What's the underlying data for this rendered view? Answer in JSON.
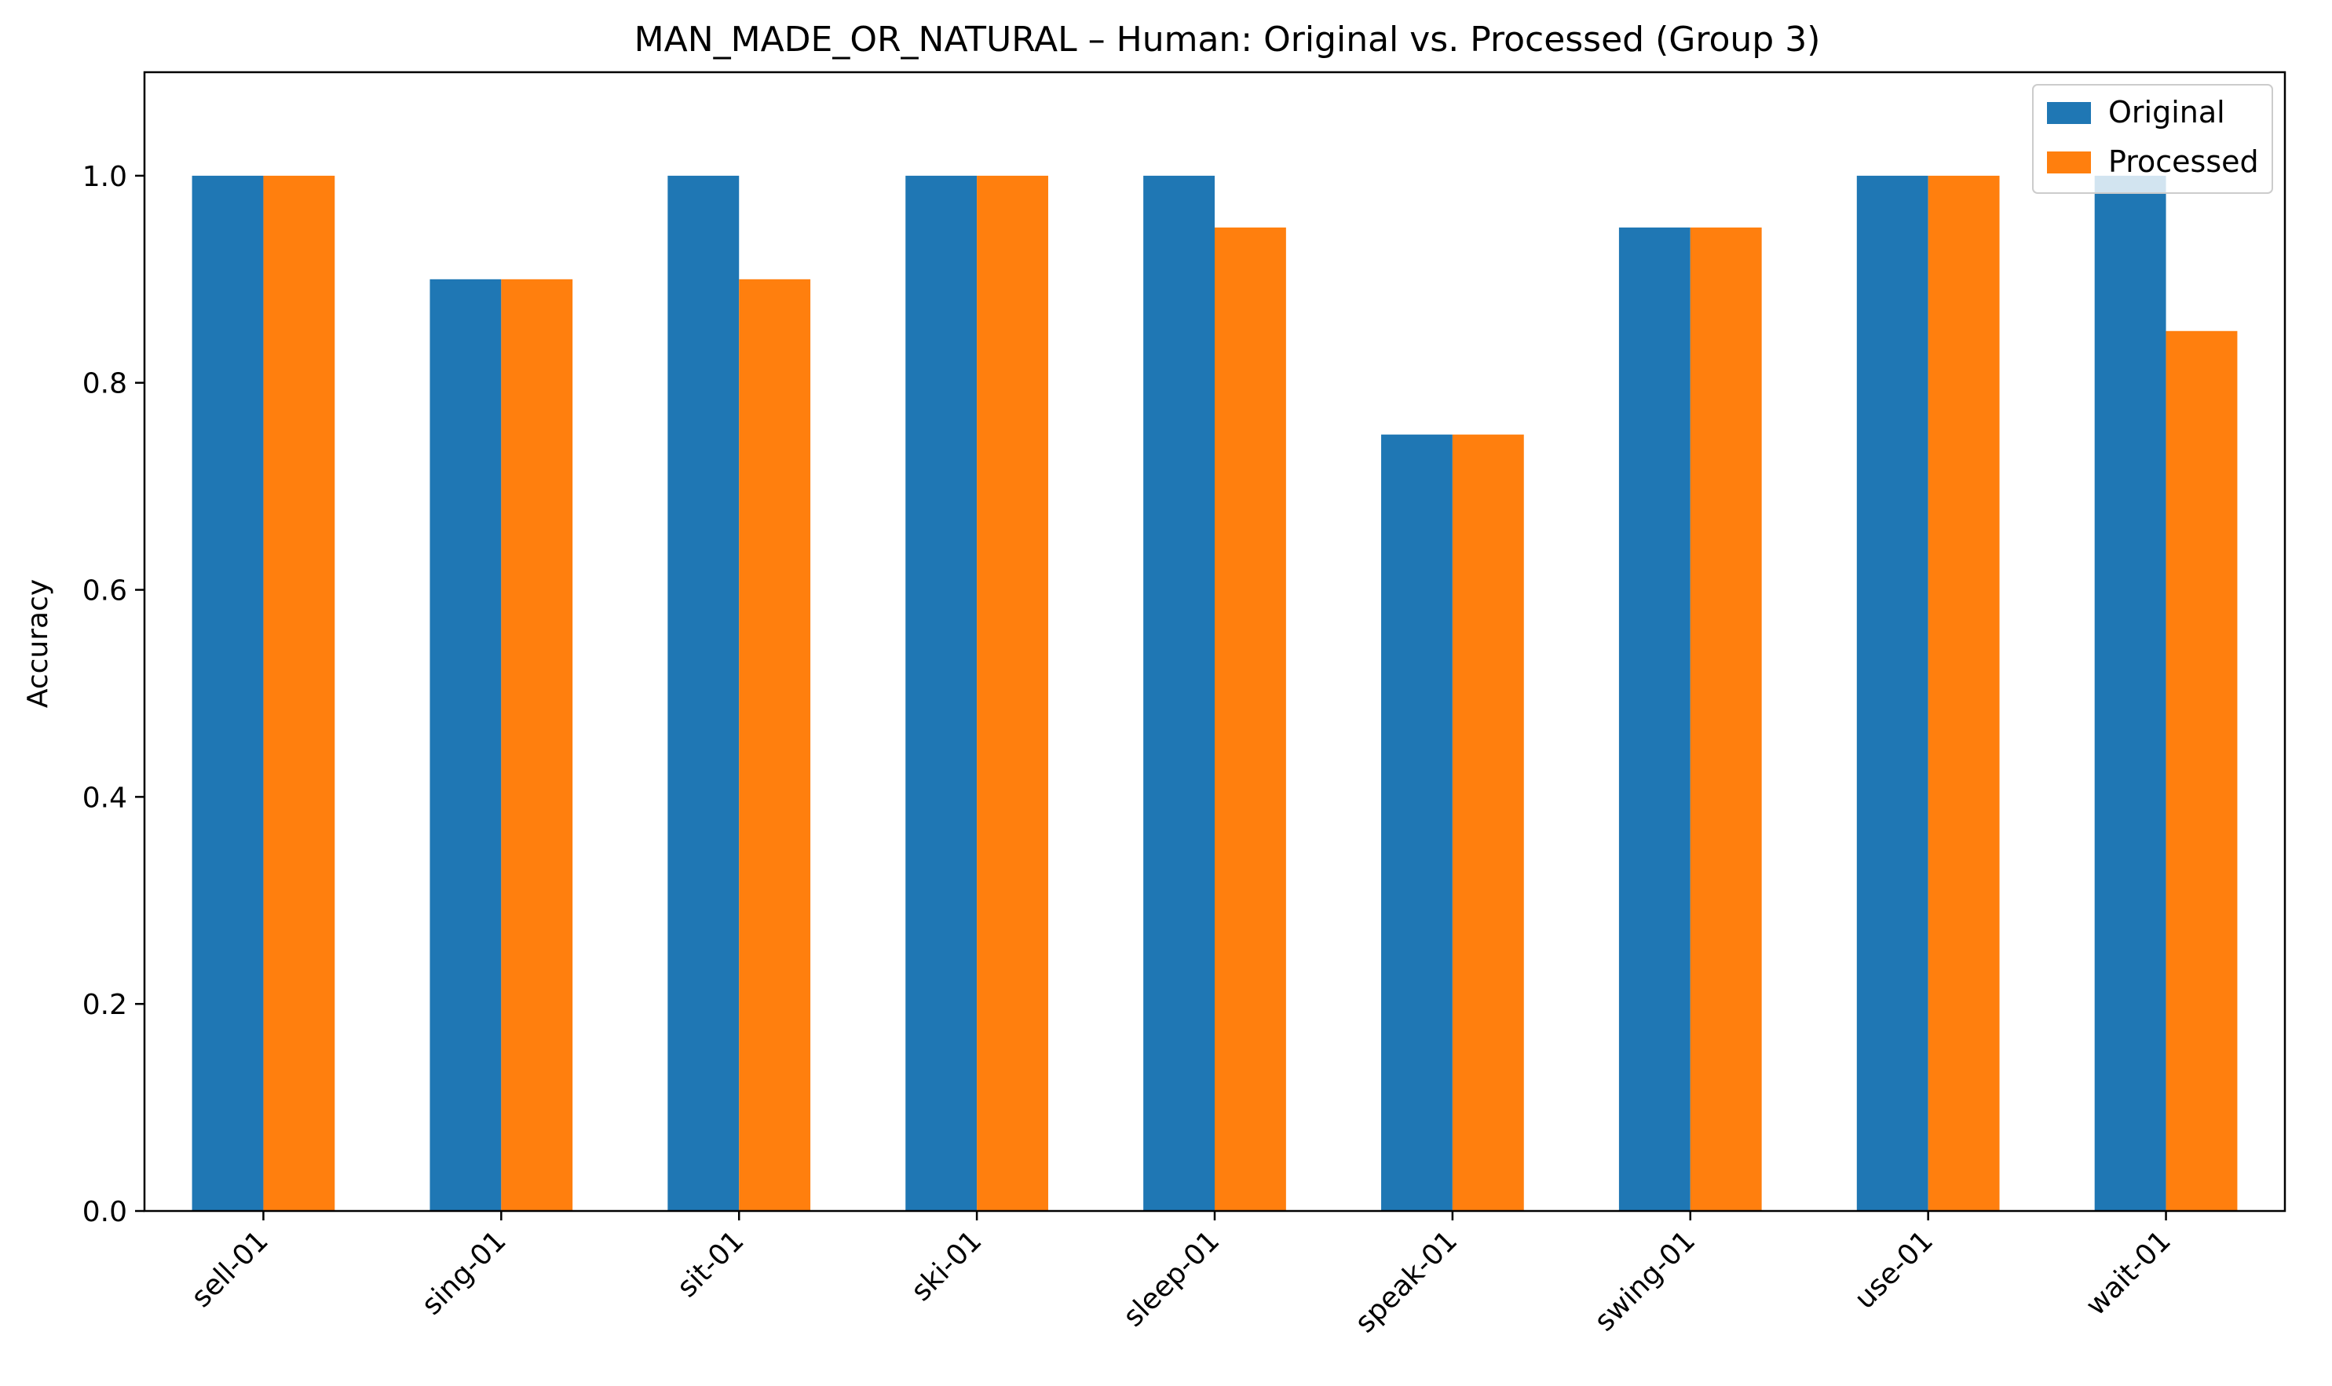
{
  "chart_data": {
    "type": "bar",
    "title": "MAN_MADE_OR_NATURAL – Human: Original vs. Processed (Group 3)",
    "xlabel": "",
    "ylabel": "Accuracy",
    "ylim": [
      0,
      1.1
    ],
    "yticks": [
      "0.0",
      "0.2",
      "0.4",
      "0.6",
      "0.8",
      "1.0"
    ],
    "categories": [
      "sell-01",
      "sing-01",
      "sit-01",
      "ski-01",
      "sleep-01",
      "speak-01",
      "swing-01",
      "use-01",
      "wait-01"
    ],
    "series": [
      {
        "name": "Original",
        "color": "#1f77b4",
        "values": [
          1.0,
          0.9,
          1.0,
          1.0,
          1.0,
          0.75,
          0.95,
          1.0,
          1.0
        ]
      },
      {
        "name": "Processed",
        "color": "#ff7f0e",
        "values": [
          1.0,
          0.9,
          0.9,
          1.0,
          0.95,
          0.75,
          0.95,
          1.0,
          0.85
        ]
      }
    ],
    "legend_position": "top-right",
    "grid": false
  }
}
